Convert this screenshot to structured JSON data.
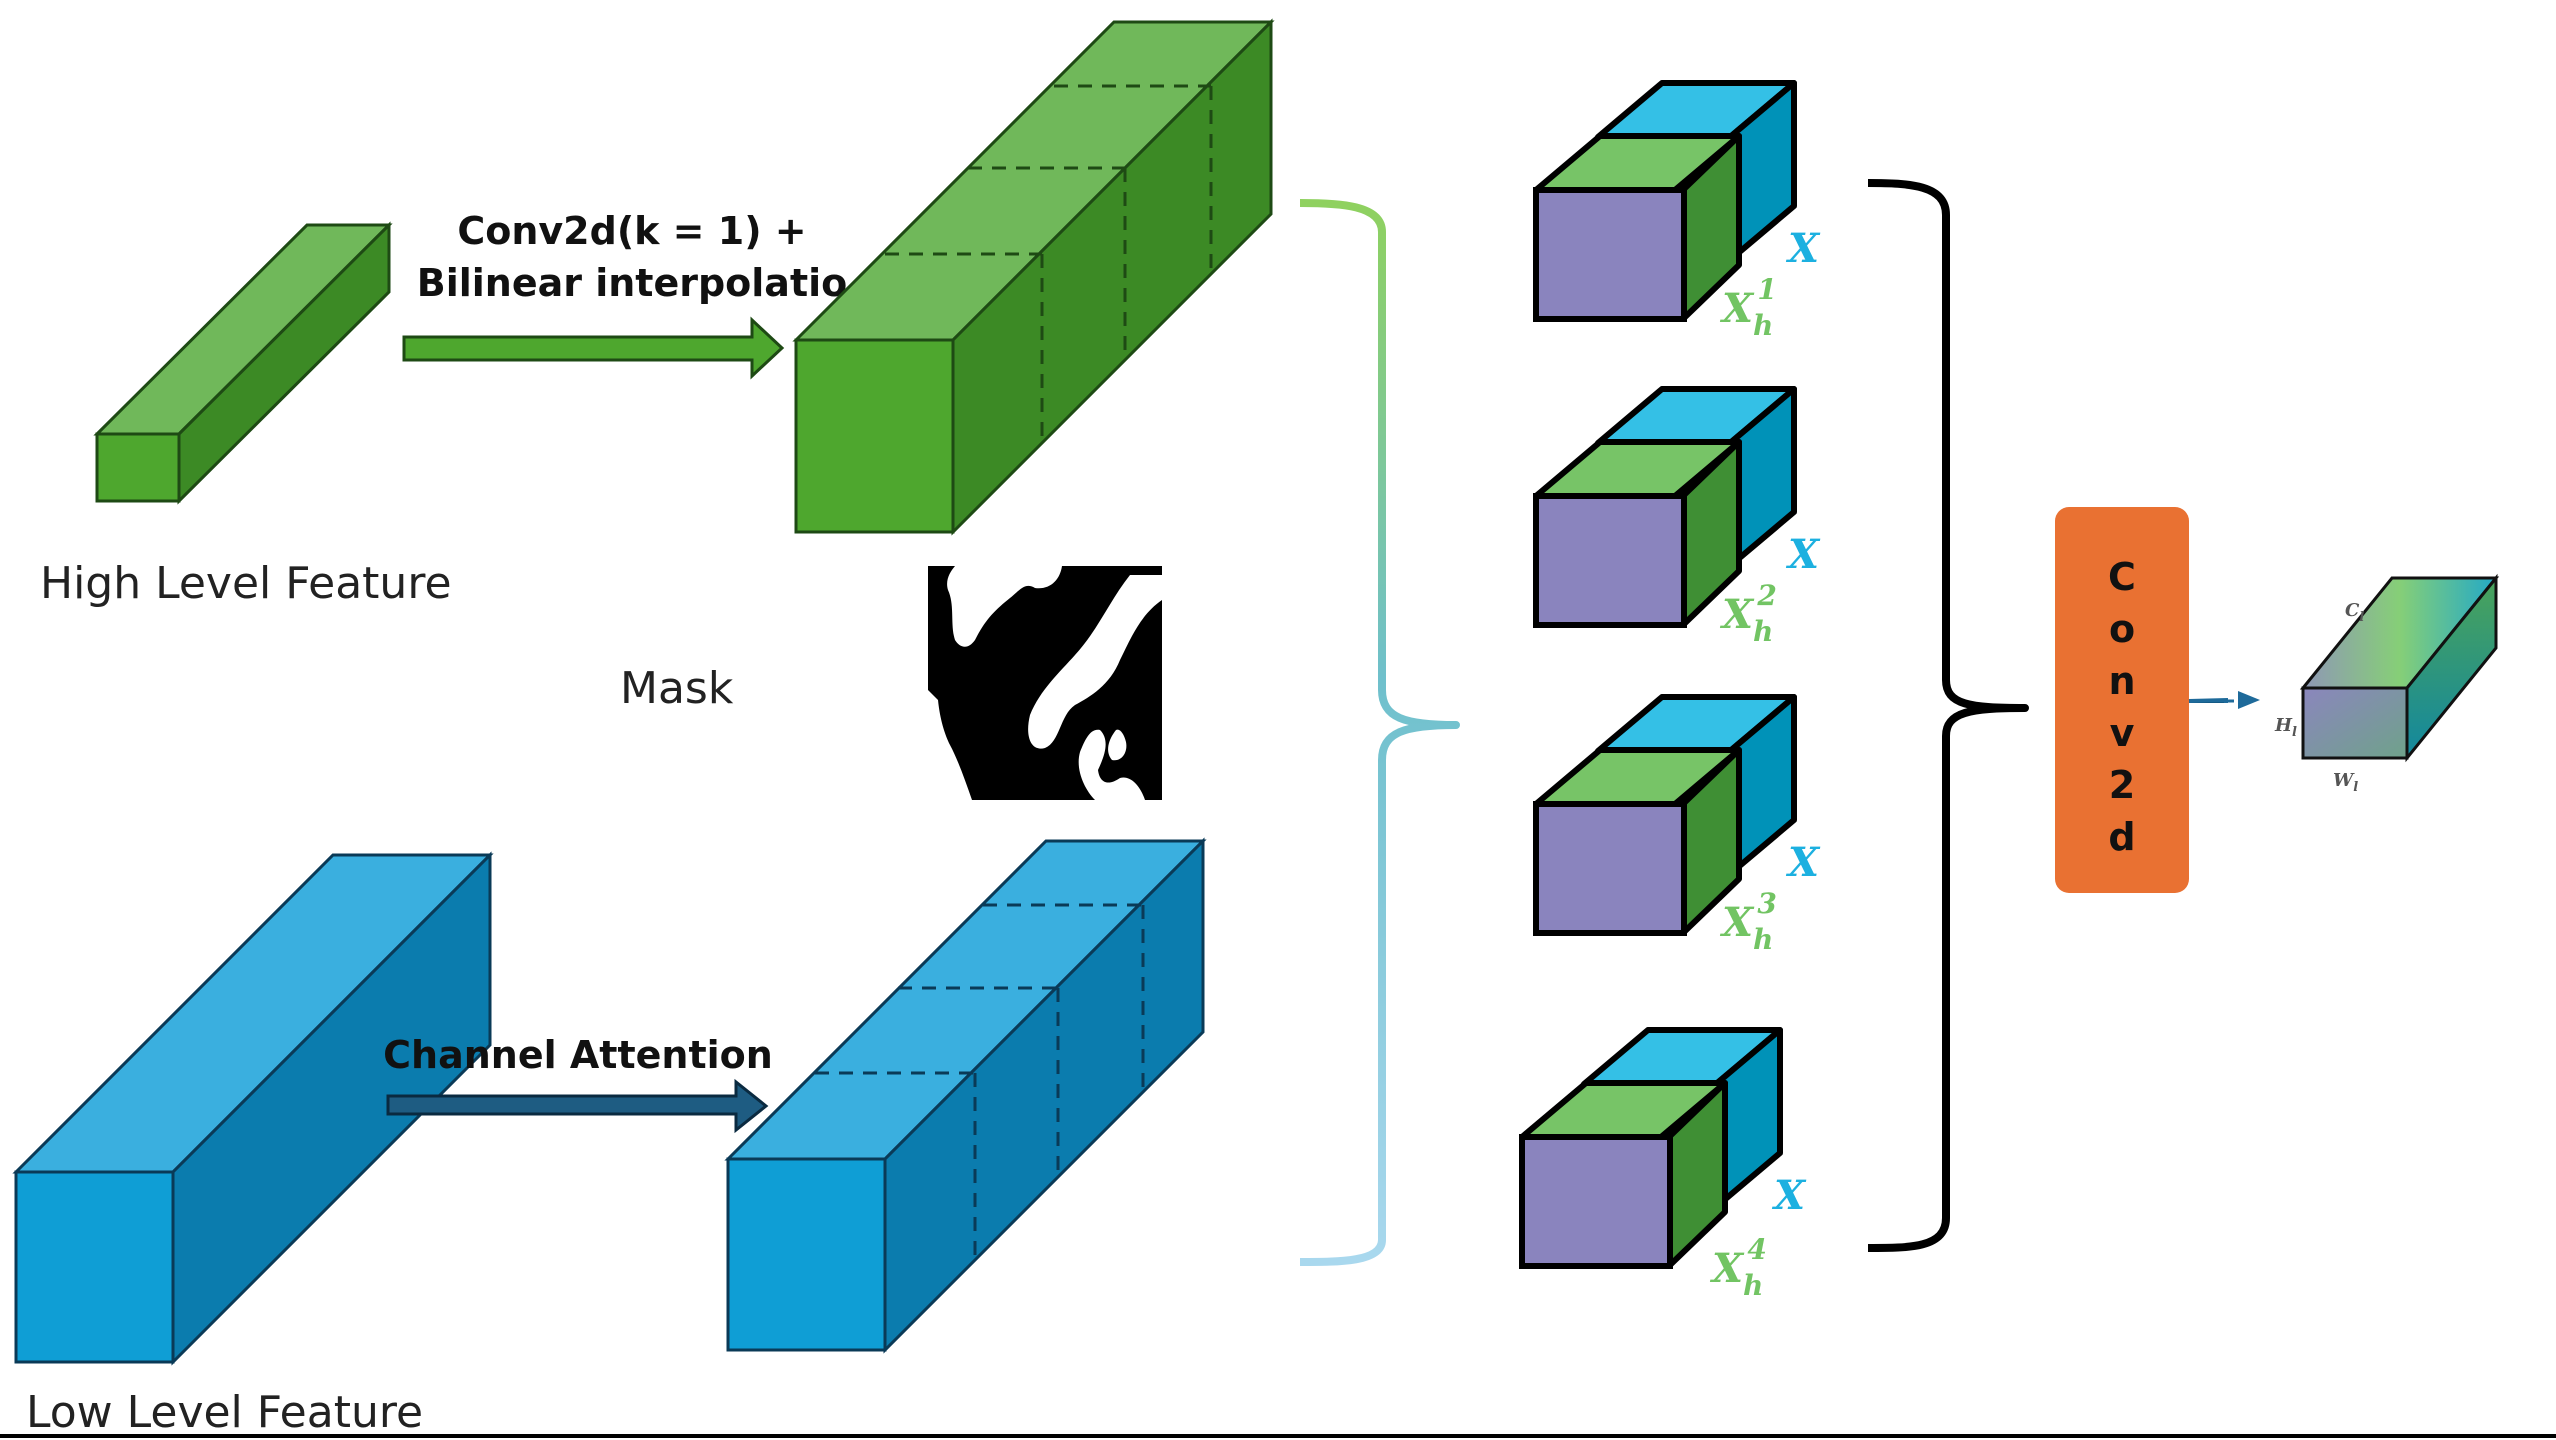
{
  "labels": {
    "high_level_feature": "High Level Feature",
    "low_level_feature": "Low Level Feature",
    "mask": "Mask",
    "conv_line1": "Conv2d(k = 1) +",
    "conv_line2": "Bilinear interpolatio",
    "channel_attention": "Channel Attention",
    "conv2d_box": [
      "C",
      "o",
      "n",
      "v",
      "2",
      "d"
    ]
  },
  "groups": [
    {
      "x_label": "X",
      "h_base": "X",
      "h_sub": "h",
      "h_sup": "1"
    },
    {
      "x_label": "X",
      "h_base": "X",
      "h_sub": "h",
      "h_sup": "2"
    },
    {
      "x_label": "X",
      "h_base": "X",
      "h_sub": "h",
      "h_sup": "3"
    },
    {
      "x_label": "X",
      "h_base": "X",
      "h_sub": "h",
      "h_sup": "4"
    }
  ],
  "output_dims": {
    "c": "C",
    "c_sub": "l",
    "h": "H",
    "h_sub": "l",
    "w": "W",
    "w_sub": "l"
  },
  "colors": {
    "green_front": "#4ea72e",
    "green_top": "#70b85a",
    "green_side": "#3c8a25",
    "blue_front": "#0f9ed5",
    "blue_top": "#3aafdf",
    "blue_side": "#0b7cae",
    "cube_purple": "#8a84be",
    "cube_green_top": "#77c467",
    "cube_green_side": "#3f8f34",
    "cube_blue_top": "#34c0e6",
    "cube_blue_side": "#0092b8",
    "conv_orange": "#e97132",
    "x_label_cyan": "#1cb0e0",
    "xh_label_green": "#72c463"
  }
}
